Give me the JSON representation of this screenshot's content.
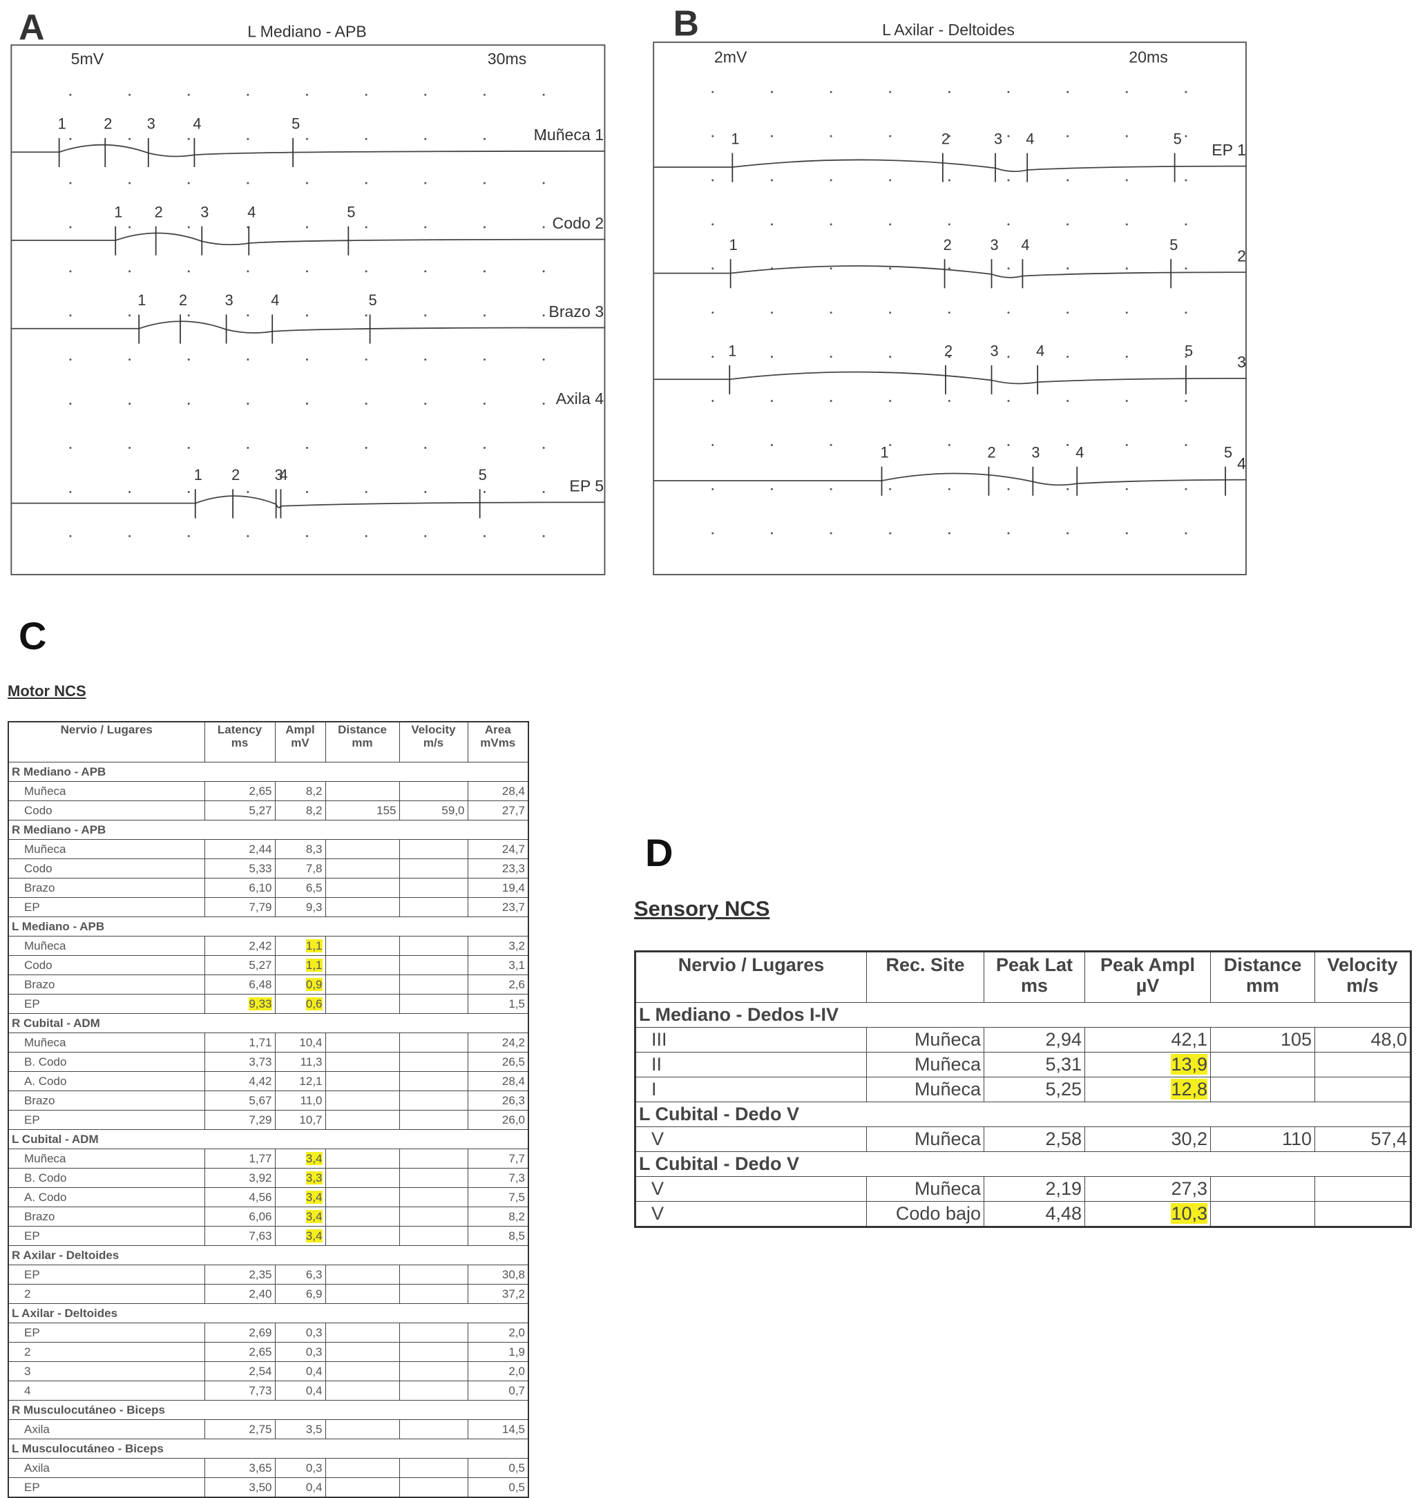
{
  "panels": [
    {
      "letter": "A",
      "title": "L Mediano - APB",
      "amp_scale": "5mV",
      "time_scale": "30ms",
      "traces": [
        {
          "label": "Muñeca 1",
          "markers": [
            "1",
            "2",
            "3",
            "4",
            "5"
          ]
        },
        {
          "label": "Codo 2",
          "markers": [
            "1",
            "2",
            "3",
            "4",
            "5"
          ]
        },
        {
          "label": "Brazo 3",
          "markers": [
            "1",
            "2",
            "3",
            "4",
            "5"
          ]
        },
        {
          "label": "Axila 4",
          "markers": []
        },
        {
          "label": "EP 5",
          "markers": [
            "1",
            "2",
            "3",
            "4",
            "5"
          ]
        }
      ]
    },
    {
      "letter": "B",
      "title": "L Axilar - Deltoides",
      "amp_scale": "2mV",
      "time_scale": "20ms",
      "traces": [
        {
          "label": "EP 1",
          "markers": [
            "1",
            "2",
            "3",
            "4",
            "5"
          ]
        },
        {
          "label": "2",
          "markers": [
            "1",
            "2",
            "3",
            "4",
            "5"
          ]
        },
        {
          "label": "3",
          "markers": [
            "1",
            "2",
            "3",
            "4",
            "5"
          ]
        },
        {
          "label": "4",
          "markers": [
            "1",
            "2",
            "3",
            "4",
            "5"
          ]
        }
      ]
    }
  ],
  "motor": {
    "letter": "C",
    "title": "Motor NCS",
    "header": [
      {
        "name": "Nervio / Lugares"
      },
      {
        "name": "Latency",
        "unit": "ms"
      },
      {
        "name": "Ampl",
        "unit": "mV"
      },
      {
        "name": "Distance",
        "unit": "mm"
      },
      {
        "name": "Velocity",
        "unit": "m/s"
      },
      {
        "name": "Area",
        "unit": "mVms"
      }
    ],
    "groups": [
      {
        "name": "R Mediano - APB",
        "rows": [
          [
            "Muñeca",
            "2,65",
            "8,2",
            null,
            null,
            "28,4"
          ],
          [
            "Codo",
            "5,27",
            "8,2",
            "155",
            "59,0",
            "27,7"
          ]
        ]
      },
      {
        "name": "R Mediano - APB",
        "rows": [
          [
            "Muñeca",
            "2,44",
            "8,3",
            null,
            null,
            "24,7"
          ],
          [
            "Codo",
            "5,33",
            "7,8",
            null,
            null,
            "23,3"
          ],
          [
            "Brazo",
            "6,10",
            "6,5",
            null,
            null,
            "19,4"
          ],
          [
            "EP",
            "7,79",
            "9,3",
            null,
            null,
            "23,7"
          ]
        ]
      },
      {
        "name": "L Mediano - APB",
        "rows": [
          [
            "Muñeca",
            "2,42",
            {
              "text": "1,1",
              "highlight": true
            },
            null,
            null,
            "3,2"
          ],
          [
            "Codo",
            "5,27",
            {
              "text": "1,1",
              "highlight": true
            },
            null,
            null,
            "3,1"
          ],
          [
            "Brazo",
            "6,48",
            {
              "text": "0,9",
              "highlight": true
            },
            null,
            null,
            "2,6"
          ],
          [
            "EP",
            {
              "text": "9,33",
              "highlight": true
            },
            {
              "text": "0,6",
              "highlight": true
            },
            null,
            null,
            "1,5"
          ]
        ]
      },
      {
        "name": "R Cubital - ADM",
        "rows": [
          [
            "Muñeca",
            "1,71",
            "10,4",
            null,
            null,
            "24,2"
          ],
          [
            "B. Codo",
            "3,73",
            "11,3",
            null,
            null,
            "26,5"
          ],
          [
            "A. Codo",
            "4,42",
            "12,1",
            null,
            null,
            "28,4"
          ],
          [
            "Brazo",
            "5,67",
            "11,0",
            null,
            null,
            "26,3"
          ],
          [
            "EP",
            "7,29",
            "10,7",
            null,
            null,
            "26,0"
          ]
        ]
      },
      {
        "name": "L Cubital - ADM",
        "rows": [
          [
            "Muñeca",
            "1,77",
            {
              "text": "3,4",
              "highlight": true
            },
            null,
            null,
            "7,7"
          ],
          [
            "B. Codo",
            "3,92",
            {
              "text": "3,3",
              "highlight": true
            },
            null,
            null,
            "7,3"
          ],
          [
            "A. Codo",
            "4,56",
            {
              "text": "3,4",
              "highlight": true
            },
            null,
            null,
            "7,5"
          ],
          [
            "Brazo",
            "6,06",
            {
              "text": "3,4",
              "highlight": true
            },
            null,
            null,
            "8,2"
          ],
          [
            "EP",
            "7,63",
            {
              "text": "3,4",
              "highlight": true
            },
            null,
            null,
            "8,5"
          ]
        ]
      },
      {
        "name": "R Axilar - Deltoides",
        "rows": [
          [
            "EP",
            "2,35",
            "6,3",
            null,
            null,
            "30,8"
          ],
          [
            "2",
            "2,40",
            "6,9",
            null,
            null,
            "37,2"
          ]
        ]
      },
      {
        "name": "L Axilar - Deltoides",
        "rows": [
          [
            "EP",
            "2,69",
            "0,3",
            null,
            null,
            "2,0"
          ],
          [
            "2",
            "2,65",
            "0,3",
            null,
            null,
            "1,9"
          ],
          [
            "3",
            "2,54",
            "0,4",
            null,
            null,
            "2,0"
          ],
          [
            "4",
            "7,73",
            "0,4",
            null,
            null,
            "0,7"
          ]
        ]
      },
      {
        "name": "R Musculocutáneo - Biceps",
        "rows": [
          [
            "Axila",
            "2,75",
            "3,5",
            null,
            null,
            "14,5"
          ]
        ]
      },
      {
        "name": "L Musculocutáneo - Biceps",
        "rows": [
          [
            "Axila",
            "3,65",
            "0,3",
            null,
            null,
            "0,5"
          ],
          [
            "EP",
            "3,50",
            "0,4",
            null,
            null,
            "0,5"
          ]
        ]
      }
    ]
  },
  "sensory": {
    "letter": "D",
    "title": "Sensory NCS",
    "header": [
      {
        "name": "Nervio / Lugares"
      },
      {
        "name": "Rec. Site"
      },
      {
        "name": "Peak Lat",
        "unit": "ms"
      },
      {
        "name": "Peak Ampl",
        "unit": "µV"
      },
      {
        "name": "Distance",
        "unit": "mm"
      },
      {
        "name": "Velocity",
        "unit": "m/s"
      }
    ],
    "groups": [
      {
        "name": "L Mediano - Dedos I-IV",
        "rows": [
          [
            "III",
            "Muñeca",
            "2,94",
            "42,1",
            "105",
            "48,0"
          ],
          [
            "II",
            "Muñeca",
            "5,31",
            {
              "text": "13,9",
              "highlight": true
            },
            null,
            null
          ],
          [
            "I",
            "Muñeca",
            "5,25",
            {
              "text": "12,8",
              "highlight": true
            },
            null,
            null
          ]
        ]
      },
      {
        "name": "L Cubital - Dedo V",
        "rows": [
          [
            "V",
            "Muñeca",
            "2,58",
            "30,2",
            "110",
            "57,4"
          ]
        ]
      },
      {
        "name": "L Cubital - Dedo V",
        "rows": [
          [
            "V",
            "Muñeca",
            "2,19",
            "27,3",
            null,
            null
          ],
          [
            "V",
            "Codo bajo",
            "4,48",
            {
              "text": "10,3",
              "highlight": true
            },
            null,
            null
          ]
        ]
      }
    ]
  }
}
